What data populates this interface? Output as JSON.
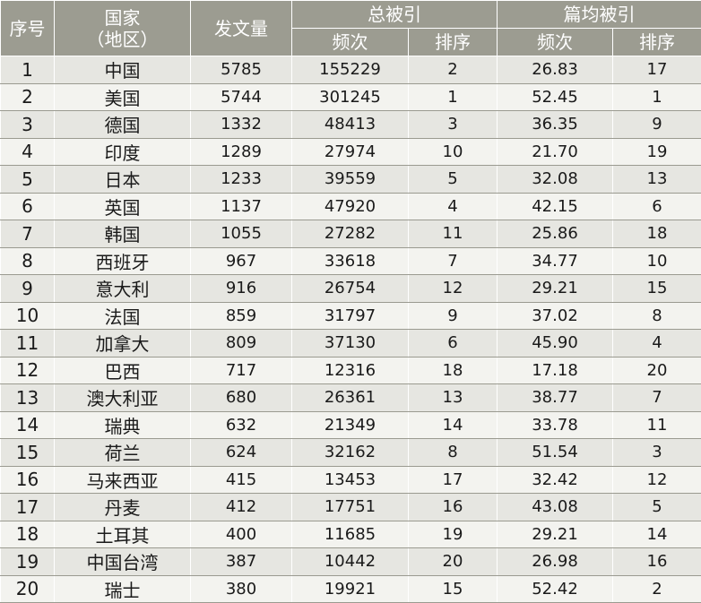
{
  "header": {
    "index": "序号",
    "country": "国家\n（地区）",
    "papers": "发文量",
    "total_citations": "总被引",
    "avg_citations": "篇均被引",
    "frequency": "频次",
    "rank": "排序"
  },
  "rows": [
    {
      "idx": "1",
      "country": "中国",
      "papers": "5785",
      "total_freq": "155229",
      "total_rank": "2",
      "avg_freq": "26.83",
      "avg_rank": "17"
    },
    {
      "idx": "2",
      "country": "美国",
      "papers": "5744",
      "total_freq": "301245",
      "total_rank": "1",
      "avg_freq": "52.45",
      "avg_rank": "1"
    },
    {
      "idx": "3",
      "country": "德国",
      "papers": "1332",
      "total_freq": "48413",
      "total_rank": "3",
      "avg_freq": "36.35",
      "avg_rank": "9"
    },
    {
      "idx": "4",
      "country": "印度",
      "papers": "1289",
      "total_freq": "27974",
      "total_rank": "10",
      "avg_freq": "21.70",
      "avg_rank": "19"
    },
    {
      "idx": "5",
      "country": "日本",
      "papers": "1233",
      "total_freq": "39559",
      "total_rank": "5",
      "avg_freq": "32.08",
      "avg_rank": "13"
    },
    {
      "idx": "6",
      "country": "英国",
      "papers": "1137",
      "total_freq": "47920",
      "total_rank": "4",
      "avg_freq": "42.15",
      "avg_rank": "6"
    },
    {
      "idx": "7",
      "country": "韩国",
      "papers": "1055",
      "total_freq": "27282",
      "total_rank": "11",
      "avg_freq": "25.86",
      "avg_rank": "18"
    },
    {
      "idx": "8",
      "country": "西班牙",
      "papers": "967",
      "total_freq": "33618",
      "total_rank": "7",
      "avg_freq": "34.77",
      "avg_rank": "10"
    },
    {
      "idx": "9",
      "country": "意大利",
      "papers": "916",
      "total_freq": "26754",
      "total_rank": "12",
      "avg_freq": "29.21",
      "avg_rank": "15"
    },
    {
      "idx": "10",
      "country": "法国",
      "papers": "859",
      "total_freq": "31797",
      "total_rank": "9",
      "avg_freq": "37.02",
      "avg_rank": "8"
    },
    {
      "idx": "11",
      "country": "加拿大",
      "papers": "809",
      "total_freq": "37130",
      "total_rank": "6",
      "avg_freq": "45.90",
      "avg_rank": "4"
    },
    {
      "idx": "12",
      "country": "巴西",
      "papers": "717",
      "total_freq": "12316",
      "total_rank": "18",
      "avg_freq": "17.18",
      "avg_rank": "20"
    },
    {
      "idx": "13",
      "country": "澳大利亚",
      "papers": "680",
      "total_freq": "26361",
      "total_rank": "13",
      "avg_freq": "38.77",
      "avg_rank": "7"
    },
    {
      "idx": "14",
      "country": "瑞典",
      "papers": "632",
      "total_freq": "21349",
      "total_rank": "14",
      "avg_freq": "33.78",
      "avg_rank": "11"
    },
    {
      "idx": "15",
      "country": "荷兰",
      "papers": "624",
      "total_freq": "32162",
      "total_rank": "8",
      "avg_freq": "51.54",
      "avg_rank": "3"
    },
    {
      "idx": "16",
      "country": "马来西亚",
      "papers": "415",
      "total_freq": "13453",
      "total_rank": "17",
      "avg_freq": "32.42",
      "avg_rank": "12"
    },
    {
      "idx": "17",
      "country": "丹麦",
      "papers": "412",
      "total_freq": "17751",
      "total_rank": "16",
      "avg_freq": "43.08",
      "avg_rank": "5"
    },
    {
      "idx": "18",
      "country": "土耳其",
      "papers": "400",
      "total_freq": "11685",
      "total_rank": "19",
      "avg_freq": "29.21",
      "avg_rank": "14"
    },
    {
      "idx": "19",
      "country": "中国台湾",
      "papers": "387",
      "total_freq": "10442",
      "total_rank": "20",
      "avg_freq": "26.98",
      "avg_rank": "16"
    },
    {
      "idx": "20",
      "country": "瑞士",
      "papers": "380",
      "total_freq": "19921",
      "total_rank": "15",
      "avg_freq": "52.42",
      "avg_rank": "2"
    }
  ],
  "colors": {
    "header_bg": "#9c9c91",
    "header_text": "#ffffff",
    "row_odd": "#e6e6e1",
    "row_even": "#f3f3ef",
    "divider": "#9a9a90"
  }
}
